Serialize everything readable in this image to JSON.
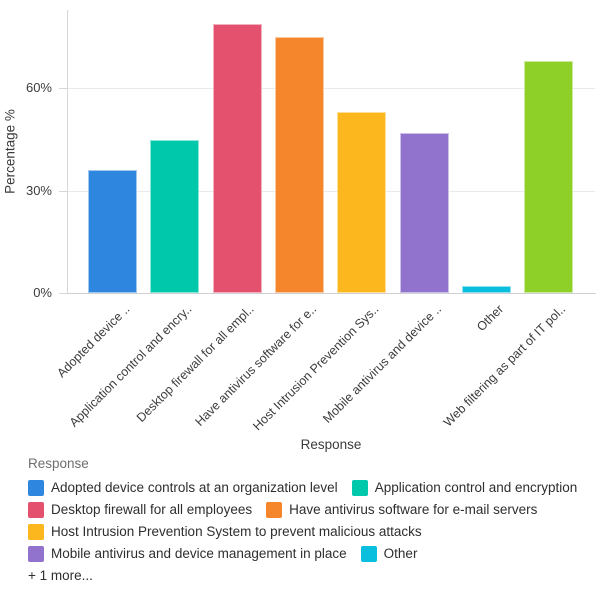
{
  "chart_data": {
    "type": "bar",
    "title": "",
    "xlabel": "Response",
    "ylabel": "Percentage %",
    "ylim": [
      0,
      83
    ],
    "yticks": [
      0,
      30,
      60
    ],
    "ytick_suffix": "%",
    "grid": true,
    "categories": [
      "Adopted device ..",
      "Application control and encry..",
      "Desktop firewall for all empl..",
      "Have antivirus software for e..",
      "Host Intrusion Prevention Sys..",
      "Mobile antivirus and device ..",
      "Other",
      "Web filtering as part of IT pol.."
    ],
    "values": [
      36,
      45,
      79,
      75,
      53,
      47,
      2,
      68
    ],
    "colors": [
      "#2E86DE",
      "#00C9AB",
      "#E4516E",
      "#F6862C",
      "#FCB71E",
      "#9173CE",
      "#0ABFDD",
      "#8ED028"
    ],
    "legend": {
      "title": "Response",
      "position": "bottom-left",
      "rows": [
        [
          {
            "label": "Adopted device controls at an organization level",
            "color": "#2E86DE"
          },
          {
            "label": "Application control and encryption",
            "color": "#00C9AB"
          }
        ],
        [
          {
            "label": "Desktop firewall for all employees",
            "color": "#E4516E"
          },
          {
            "label": "Have antivirus software for e-mail servers",
            "color": "#F6862C"
          }
        ],
        [
          {
            "label": "Host Intrusion Prevention System to prevent malicious attacks",
            "color": "#FCB71E"
          }
        ],
        [
          {
            "label": "Mobile antivirus and device management in place",
            "color": "#9173CE"
          },
          {
            "label": "Other",
            "color": "#0ABFDD"
          }
        ]
      ],
      "more_label": "+ 1 more..."
    }
  }
}
